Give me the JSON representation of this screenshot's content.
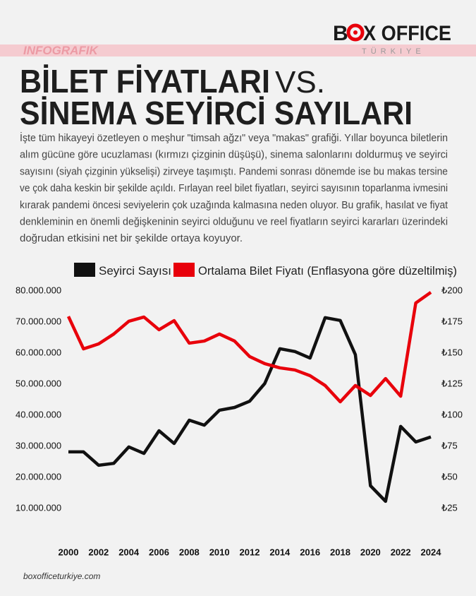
{
  "header": {
    "logo": [
      "B",
      "X OFFICE"
    ],
    "logo_sub": "TÜRKIYE",
    "tag": "INFOGRAFIK",
    "title_line1": "BİLET FİYATLARI",
    "title_vs": "VS.",
    "title_line2": "SİNEMA SEYİRCİ SAYILARI"
  },
  "description": [
    "İşte tüm hikayeyi özetleyen o meşhur \"timsah ağzı\" veya \"makas\" grafiği. Yıllar boyunca biletlerin",
    "alım gücüne göre ucuzlaması (kırmızı çizginin düşüşü), sinema salonlarını doldurmuş ve seyirci",
    "sayısını (siyah çizginin yükselişi) zirveye taşımıştı.  Pandemi sonrası dönemde ise bu makas tersine",
    "ve çok daha keskin bir şekilde açıldı. Fırlayan reel bilet fiyatları, seyirci sayısının toparlanma ivmesini",
    "kırarak pandemi öncesi seviyelerin çok uzağında kalmasına neden oluyor. Bu grafik, hasılat ve fiyat",
    "denkleminin en önemli değişkeninin seyirci olduğunu ve reel fiyatların seyirci kararları üzerindeki",
    "doğrudan etkisini net bir şekilde ortaya koyuyor."
  ],
  "chart_data": {
    "type": "line",
    "x": [
      2000,
      2001,
      2002,
      2003,
      2004,
      2005,
      2006,
      2007,
      2008,
      2009,
      2010,
      2011,
      2012,
      2013,
      2014,
      2015,
      2016,
      2017,
      2018,
      2019,
      2020,
      2021,
      2022,
      2023,
      2024
    ],
    "xlim": [
      2000,
      2024
    ],
    "xticks": [
      2000,
      2002,
      2004,
      2006,
      2008,
      2010,
      2012,
      2014,
      2016,
      2018,
      2020,
      2022,
      2024
    ],
    "ylim": [
      0,
      80000000
    ],
    "yticks": [
      {
        "value": 10000000,
        "label": "10.000.000"
      },
      {
        "value": 20000000,
        "label": "20.000.000"
      },
      {
        "value": 30000000,
        "label": "30.000.000"
      },
      {
        "value": 40000000,
        "label": "40.000.000"
      },
      {
        "value": 50000000,
        "label": "50.000.000"
      },
      {
        "value": 60000000,
        "label": "60.000.000"
      },
      {
        "value": 70000000,
        "label": "70.000.000"
      },
      {
        "value": 80000000,
        "label": "80.000.000"
      }
    ],
    "y2lim": [
      0,
      200
    ],
    "y2ticks": [
      {
        "value": 25,
        "label": "₺25"
      },
      {
        "value": 50,
        "label": "₺50"
      },
      {
        "value": 75,
        "label": "₺75"
      },
      {
        "value": 100,
        "label": "₺100"
      },
      {
        "value": 125,
        "label": "₺125"
      },
      {
        "value": 150,
        "label": "₺150"
      },
      {
        "value": 175,
        "label": "₺175"
      },
      {
        "value": 200,
        "label": "₺200"
      }
    ],
    "grid": false,
    "series": [
      {
        "name": "Seyirci Sayısı",
        "color": "#111111",
        "values": [
          28200000,
          28200000,
          23900000,
          24500000,
          29800000,
          27700000,
          35000000,
          30900000,
          38400000,
          36800000,
          41600000,
          42500000,
          44500000,
          50200000,
          61400000,
          60500000,
          58400000,
          71400000,
          70500000,
          59500000,
          17300000,
          12300000,
          36400000,
          31400000,
          33000000
        ]
      },
      {
        "name": "Ortalama Bilet Fiyatı (Enflasyona göre düzeltilmiş)",
        "color": "#e8000b",
        "axis": "y2",
        "values": [
          179.5,
          153.4,
          157.4,
          165.3,
          175.6,
          179,
          168.8,
          176.1,
          158,
          159.7,
          165.3,
          159.7,
          147.2,
          141.5,
          138.1,
          136.4,
          131.8,
          123.9,
          110.8,
          123.9,
          115.9,
          129.5,
          115.3,
          190.3,
          198.9
        ]
      }
    ]
  },
  "footer": "boxofficeturkiye.com"
}
